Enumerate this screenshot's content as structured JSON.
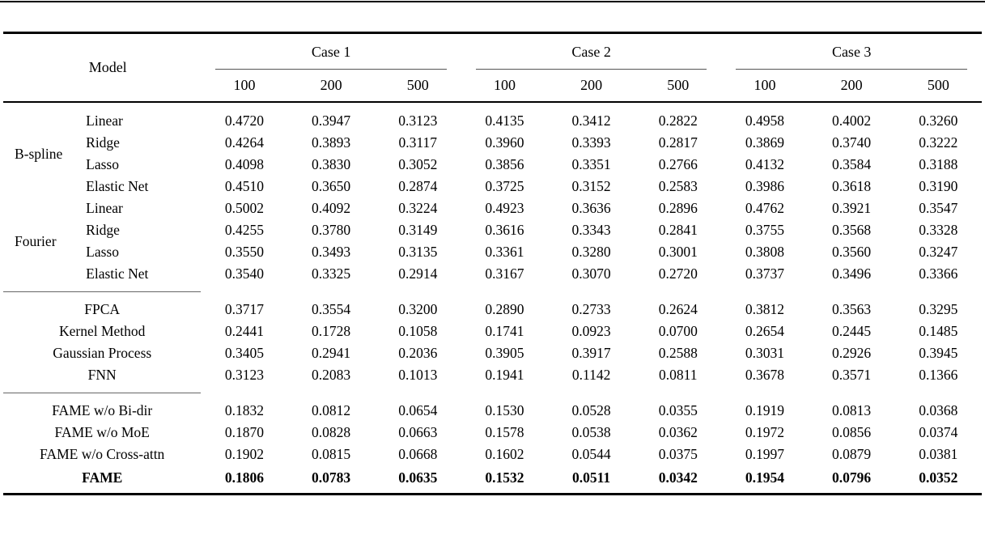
{
  "table": {
    "header": {
      "model": "Model",
      "cases": [
        {
          "label": "Case 1",
          "sizes": [
            "100",
            "200",
            "500"
          ]
        },
        {
          "label": "Case 2",
          "sizes": [
            "100",
            "200",
            "500"
          ]
        },
        {
          "label": "Case 3",
          "sizes": [
            "100",
            "200",
            "500"
          ]
        }
      ]
    },
    "basis_groups": [
      {
        "label": "B-spline",
        "rows": [
          {
            "name": "Linear",
            "values": [
              "0.4720",
              "0.3947",
              "0.3123",
              "0.4135",
              "0.3412",
              "0.2822",
              "0.4958",
              "0.4002",
              "0.3260"
            ]
          },
          {
            "name": "Ridge",
            "values": [
              "0.4264",
              "0.3893",
              "0.3117",
              "0.3960",
              "0.3393",
              "0.2817",
              "0.3869",
              "0.3740",
              "0.3222"
            ]
          },
          {
            "name": "Lasso",
            "values": [
              "0.4098",
              "0.3830",
              "0.3052",
              "0.3856",
              "0.3351",
              "0.2766",
              "0.4132",
              "0.3584",
              "0.3188"
            ]
          },
          {
            "name": "Elastic Net",
            "values": [
              "0.4510",
              "0.3650",
              "0.2874",
              "0.3725",
              "0.3152",
              "0.2583",
              "0.3986",
              "0.3618",
              "0.3190"
            ]
          }
        ]
      },
      {
        "label": "Fourier",
        "rows": [
          {
            "name": "Linear",
            "values": [
              "0.5002",
              "0.4092",
              "0.3224",
              "0.4923",
              "0.3636",
              "0.2896",
              "0.4762",
              "0.3921",
              "0.3547"
            ]
          },
          {
            "name": "Ridge",
            "values": [
              "0.4255",
              "0.3780",
              "0.3149",
              "0.3616",
              "0.3343",
              "0.2841",
              "0.3755",
              "0.3568",
              "0.3328"
            ]
          },
          {
            "name": "Lasso",
            "values": [
              "0.3550",
              "0.3493",
              "0.3135",
              "0.3361",
              "0.3280",
              "0.3001",
              "0.3808",
              "0.3560",
              "0.3247"
            ]
          },
          {
            "name": "Elastic Net",
            "values": [
              "0.3540",
              "0.3325",
              "0.2914",
              "0.3167",
              "0.3070",
              "0.2720",
              "0.3737",
              "0.3496",
              "0.3366"
            ]
          }
        ]
      }
    ],
    "baselines": [
      {
        "name": "FPCA",
        "values": [
          "0.3717",
          "0.3554",
          "0.3200",
          "0.2890",
          "0.2733",
          "0.2624",
          "0.3812",
          "0.3563",
          "0.3295"
        ]
      },
      {
        "name": "Kernel Method",
        "values": [
          "0.2441",
          "0.1728",
          "0.1058",
          "0.1741",
          "0.0923",
          "0.0700",
          "0.2654",
          "0.2445",
          "0.1485"
        ]
      },
      {
        "name": "Gaussian Process",
        "values": [
          "0.3405",
          "0.2941",
          "0.2036",
          "0.3905",
          "0.3917",
          "0.2588",
          "0.3031",
          "0.2926",
          "0.3945"
        ]
      },
      {
        "name": "FNN",
        "values": [
          "0.3123",
          "0.2083",
          "0.1013",
          "0.1941",
          "0.1142",
          "0.0811",
          "0.3678",
          "0.3571",
          "0.1366"
        ]
      }
    ],
    "fame_variants": [
      {
        "name": "FAME w/o Bi-dir",
        "values": [
          "0.1832",
          "0.0812",
          "0.0654",
          "0.1530",
          "0.0528",
          "0.0355",
          "0.1919",
          "0.0813",
          "0.0368"
        ]
      },
      {
        "name": "FAME w/o MoE",
        "values": [
          "0.1870",
          "0.0828",
          "0.0663",
          "0.1578",
          "0.0538",
          "0.0362",
          "0.1972",
          "0.0856",
          "0.0374"
        ]
      },
      {
        "name": "FAME w/o Cross-attn",
        "values": [
          "0.1902",
          "0.0815",
          "0.0668",
          "0.1602",
          "0.0544",
          "0.0375",
          "0.1997",
          "0.0879",
          "0.0381"
        ]
      },
      {
        "name": "FAME",
        "values": [
          "0.1806",
          "0.0783",
          "0.0635",
          "0.1532",
          "0.0511",
          "0.0342",
          "0.1954",
          "0.0796",
          "0.0352"
        ],
        "bold": true
      }
    ]
  }
}
